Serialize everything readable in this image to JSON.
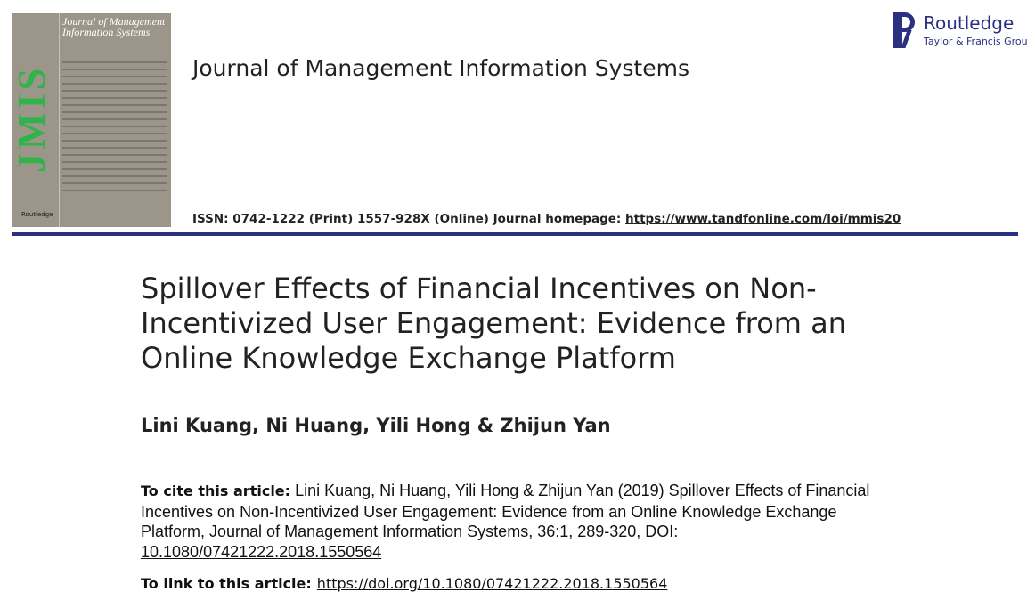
{
  "cover": {
    "letters": "JMIS",
    "title": "Journal of Management Information Systems",
    "publisher": "Routledge",
    "colors": {
      "background": "#9c968a",
      "letters": "#2fb34a"
    }
  },
  "journal_title": "Journal of Management Information Systems",
  "issn": {
    "text": "ISSN: 0742-1222 (Print) 1557-928X (Online) Journal homepage: ",
    "homepage": "https://www.tandfonline.com/loi/mmis20"
  },
  "logo": {
    "name": "Routledge",
    "group": "Taylor & Francis Group",
    "color": "#2b3180"
  },
  "article": {
    "title": "Spillover Effects of Financial Incentives on Non-Incentivized User Engagement: Evidence from an Online Knowledge Exchange Platform",
    "authors": "Lini Kuang, Ni Huang, Yili Hong & Zhijun Yan",
    "cite_label": "To cite this article:",
    "cite_text": "Lini Kuang, Ni Huang, Yili Hong & Zhijun Yan (2019) Spillover Effects of Financial Incentives on Non-Incentivized User Engagement: Evidence from an Online Knowledge Exchange Platform, Journal of Management Information Systems, 36:1, 289-320, DOI:",
    "doi": "10.1080/07421222.2018.1550564",
    "link_label": "To link to this article:",
    "link_url": "https://doi.org/10.1080/07421222.2018.1550564"
  }
}
